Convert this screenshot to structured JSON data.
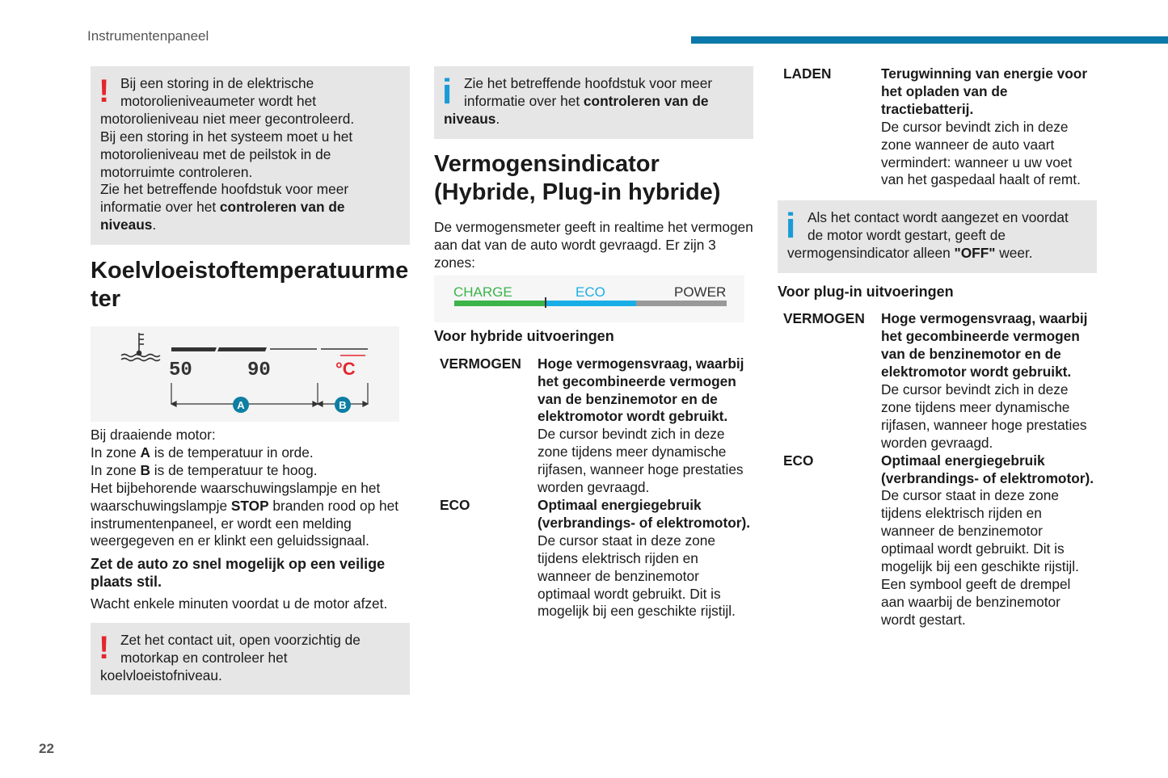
{
  "header": {
    "section": "Instrumentenpaneel",
    "page": "22",
    "accent": "#0a78a8"
  },
  "col1": {
    "warn1": [
      {
        "t": "Bij een storing in de elektrische motorolieniveaumeter wordt het motorolieniveau niet meer gecontroleerd."
      },
      {
        "br": 1
      },
      {
        "t": "Bij een storing in het systeem moet u het motorolieniveau met de peilstok in de motorruimte controleren."
      },
      {
        "br": 1
      },
      {
        "t": "Zie het betreffende hoofdstuk voor meer informatie over het "
      },
      {
        "t": "controleren van de niveaus",
        "b": 1
      },
      {
        "t": "."
      }
    ],
    "title": "Koelvloeistoftemperatuurmeter",
    "gauge": {
      "labels": [
        "50",
        "90",
        "°C"
      ],
      "zones": [
        "A",
        "B"
      ],
      "unit_color": "#e3262e",
      "zone_color": "#0e7ea3"
    },
    "para1": [
      {
        "t": "Bij draaiende motor:"
      },
      {
        "br": 1
      },
      {
        "t": "In zone "
      },
      {
        "t": "A",
        "b": 1
      },
      {
        "t": " is de temperatuur in orde."
      },
      {
        "br": 1
      },
      {
        "t": "In zone "
      },
      {
        "t": "B",
        "b": 1
      },
      {
        "t": " is de temperatuur te hoog."
      },
      {
        "br": 1
      },
      {
        "t": "Het bijbehorende waarschuwingslampje en het waarschuwingslampje "
      },
      {
        "t": "STOP",
        "b": 1
      },
      {
        "t": " branden rood op het instrumentenpaneel, er wordt een melding weergegeven en er klinkt een geluidssignaal."
      }
    ],
    "bold": "Zet de auto zo snel mogelijk op een veilige plaats stil.",
    "para2": "Wacht enkele minuten voordat u de motor afzet.",
    "warn2": [
      {
        "t": "Zet het contact uit, open voorzichtig de motorkap en controleer het koelvloeistofniveau."
      }
    ]
  },
  "col2": {
    "info1": [
      {
        "t": "Zie het betreffende hoofdstuk voor meer informatie over het "
      },
      {
        "t": "controleren van de niveaus",
        "b": 1
      },
      {
        "t": "."
      }
    ],
    "title": "Vermogensindicator (Hybride, Plug-in hybride)",
    "intro": "De vermogensmeter geeft in realtime het vermogen aan dat van de auto wordt gevraagd. Er zijn 3 zones:",
    "meter": {
      "zones": [
        {
          "label": "CHARGE",
          "color": "#3cb44a"
        },
        {
          "label": "ECO",
          "color": "#1aaee6"
        },
        {
          "label": "POWER",
          "color": "#999999"
        }
      ]
    },
    "subtitle": "Voor hybride uitvoeringen",
    "defs": [
      {
        "term": "VERMOGEN",
        "head": "Hoge vermogensvraag, waarbij het gecombineerde vermogen van de benzinemotor en de elektromotor wordt gebruikt.",
        "body": "De cursor bevindt zich in deze zone tijdens meer dynamische rijfasen, wanneer hoge prestaties worden gevraagd."
      },
      {
        "term": "ECO",
        "head": "Optimaal energiegebruik (verbrandings- of elektromotor).",
        "body": "De cursor staat in deze zone tijdens elektrisch rijden en wanneer de benzinemotor optimaal wordt gebruikt. Dit is mogelijk bij een geschikte rijstijl."
      }
    ]
  },
  "col3": {
    "defs1": [
      {
        "term": "LADEN",
        "head": "Terugwinning van energie voor het opladen van de tractiebatterij.",
        "body": "De cursor bevindt zich in deze zone wanneer de auto vaart vermindert: wanneer u uw voet van het gaspedaal haalt of remt."
      }
    ],
    "info": [
      {
        "t": "Als het contact wordt aangezet en voordat de motor wordt gestart, geeft de vermogensindicator alleen "
      },
      {
        "t": "\"OFF\"",
        "b": 1
      },
      {
        "t": " weer."
      }
    ],
    "subtitle": "Voor plug-in uitvoeringen",
    "defs2": [
      {
        "term": "VERMOGEN",
        "head": "Hoge vermogensvraag, waarbij het gecombineerde vermogen van de benzinemotor en de elektromotor wordt gebruikt.",
        "body": "De cursor bevindt zich in deze zone tijdens meer dynamische rijfasen, wanneer hoge prestaties worden gevraagd."
      },
      {
        "term": "ECO",
        "head": "Optimaal energiegebruik (verbrandings- of elektromotor).",
        "body": "De cursor staat in deze zone tijdens elektrisch rijden en wanneer de benzinemotor optimaal wordt gebruikt. Dit is mogelijk bij een geschikte rijstijl. Een symbool geeft de drempel aan waarbij de benzinemotor wordt gestart."
      }
    ]
  }
}
